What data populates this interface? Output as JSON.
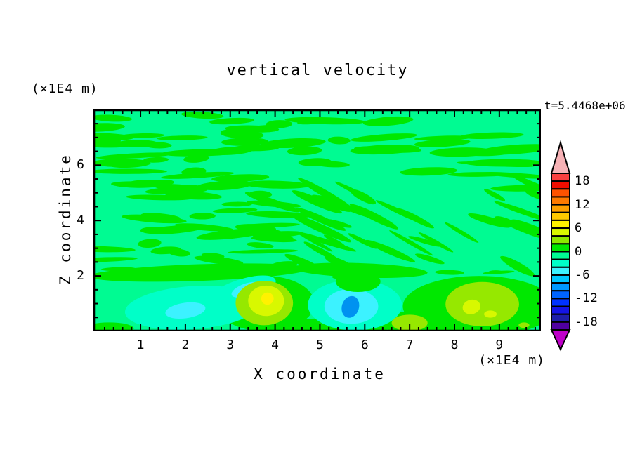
{
  "chart_data": {
    "type": "heatmap",
    "subtype": "filled-contour",
    "title": "vertical velocity",
    "time_label": "t=5.4468e+06",
    "xlabel": "X coordinate",
    "ylabel": "Z coordinate",
    "x_unit": "(×1E4 m)",
    "z_unit": "(×1E4 m)",
    "x_range": [
      0,
      9.9
    ],
    "z_range": [
      0,
      8
    ],
    "x_ticks": [
      "1",
      "2",
      "3",
      "4",
      "5",
      "6",
      "7",
      "8",
      "9"
    ],
    "z_ticks": [
      "2",
      "4",
      "6"
    ],
    "x_minor_step": 0.2,
    "z_minor_step": 0.5,
    "grid": false,
    "legend_position": "right-colorbar",
    "colorbar": {
      "min": -20,
      "max": 20,
      "bin_size": 2,
      "tick_labels": [
        "18",
        "12",
        "6",
        "0",
        "-6",
        "-12",
        "-18"
      ],
      "over_color": "#F7B2B6",
      "under_color": "#BE00C8",
      "colors_top_to_bottom": [
        "#FA4040",
        "#F00D00",
        "#FF5200",
        "#FF7A00",
        "#FFA000",
        "#FFC800",
        "#FFF200",
        "#D8F800",
        "#8CE800",
        "#00E800",
        "#00FB92",
        "#00FFC8",
        "#3CF2FF",
        "#00C8FF",
        "#0098FF",
        "#0064FF",
        "#0032FF",
        "#1414E6",
        "#1E1EAA",
        "#5000A0"
      ]
    },
    "field": {
      "background": {
        "level": "-2..0",
        "color": "#00FB92"
      },
      "texture": {
        "description": "wavy elongated streaks of slightly positive velocity over mint background; horizontal bands upper-left and top, diagonal bands descending to the right in mid-right region",
        "level": "0..2",
        "color": "#00E800",
        "seed": 12,
        "regions": [
          {
            "x": [
              0.05,
              9.85
            ],
            "z": [
              5.05,
              7.9
            ],
            "count": 60,
            "len": [
              0.5,
              1.8
            ],
            "th": [
              0.07,
              0.17
            ],
            "angle": [
              -5,
              5
            ]
          },
          {
            "x": [
              0.05,
              4.3
            ],
            "z": [
              2.3,
              5.05
            ],
            "count": 30,
            "len": [
              0.5,
              1.7
            ],
            "th": [
              0.07,
              0.17
            ],
            "angle": [
              -7,
              7
            ]
          },
          {
            "x": [
              3.6,
              9.85
            ],
            "z": [
              2.35,
              5.3
            ],
            "count": 36,
            "len": [
              0.5,
              1.5
            ],
            "th": [
              0.07,
              0.16
            ],
            "angle": [
              15,
              32
            ]
          },
          {
            "x": [
              0.2,
              9.7
            ],
            "z": [
              1.95,
              2.25
            ],
            "count": 9,
            "len": [
              0.3,
              0.8
            ],
            "th": [
              0.05,
              0.1
            ],
            "angle": [
              -4,
              4
            ]
          }
        ]
      },
      "patches": [
        {
          "name": "z2-green-band-left",
          "x": 2.3,
          "z": 2.12,
          "rx": 2.45,
          "ry": 0.3,
          "rot": -2,
          "color": "#00E800",
          "level": "0..2"
        },
        {
          "name": "z2-green-band-mid",
          "x": 5.9,
          "z": 2.2,
          "rx": 1.5,
          "ry": 0.26,
          "rot": 2,
          "color": "#00E800",
          "level": "0..2"
        },
        {
          "name": "bottom-left-corner-green",
          "x": 0.3,
          "z": 0.1,
          "rx": 0.55,
          "ry": 0.22,
          "rot": 0,
          "color": "#00E800",
          "level": "0..2"
        },
        {
          "name": "updraft-left-green-surround",
          "x": 3.78,
          "z": 1.0,
          "rx": 1.1,
          "ry": 1.0,
          "rot": 0,
          "color": "#00E800",
          "level": "0..2"
        },
        {
          "name": "bottom-strip-green",
          "x": 5.2,
          "z": 0.15,
          "rx": 1.35,
          "ry": 0.32,
          "rot": 0,
          "color": "#00E800",
          "level": "0..2"
        },
        {
          "name": "right-green-region",
          "x": 8.55,
          "z": 0.9,
          "rx": 1.7,
          "ry": 1.1,
          "rot": 0,
          "color": "#00E800",
          "level": "0..2"
        },
        {
          "name": "small-green-surround",
          "x": 7.0,
          "z": 0.3,
          "rx": 0.6,
          "ry": 0.42,
          "rot": 0,
          "color": "#00E800",
          "level": "0..2"
        },
        {
          "name": "left-downdraft-outer",
          "x": 2.15,
          "z": 0.85,
          "rx": 1.5,
          "ry": 0.78,
          "rot": -4,
          "color": "#00FFC8",
          "level": "-4..-2"
        },
        {
          "name": "left-downdraft-arm",
          "x": 3.25,
          "z": 1.45,
          "rx": 0.8,
          "ry": 0.42,
          "rot": -18,
          "color": "#00FFC8",
          "level": "-4..-2"
        },
        {
          "name": "left-downdraft-core",
          "x": 2.0,
          "z": 0.75,
          "rx": 0.45,
          "ry": 0.28,
          "rot": -8,
          "color": "#3CF2FF",
          "level": "-6..-4"
        },
        {
          "name": "left-downdraft-core2",
          "x": 3.35,
          "z": 1.5,
          "rx": 0.34,
          "ry": 0.22,
          "rot": -20,
          "color": "#3CF2FF",
          "level": "-6..-4"
        },
        {
          "name": "mid-downdraft-outer",
          "x": 5.78,
          "z": 0.95,
          "rx": 1.05,
          "ry": 0.92,
          "rot": 0,
          "color": "#00FFC8",
          "level": "-4..-2"
        },
        {
          "name": "mid-downdraft-cyan",
          "x": 5.7,
          "z": 0.9,
          "rx": 0.6,
          "ry": 0.63,
          "rot": 0,
          "color": "#3CF2FF",
          "level": "-6..-4"
        },
        {
          "name": "mid-downdraft-blue-core",
          "x": 5.68,
          "z": 0.88,
          "rx": 0.19,
          "ry": 0.4,
          "rot": 18,
          "color": "#0092F0",
          "level": "-10..-8"
        },
        {
          "name": "green-island-above-blue",
          "x": 5.85,
          "z": 1.8,
          "rx": 0.5,
          "ry": 0.38,
          "rot": 0,
          "color": "#00E800",
          "level": "0..2"
        },
        {
          "name": "updraft-left-yellowgreen",
          "x": 3.76,
          "z": 1.02,
          "rx": 0.64,
          "ry": 0.8,
          "rot": 0,
          "color": "#96E800",
          "level": "2..4"
        },
        {
          "name": "updraft-left-chartreuse",
          "x": 3.8,
          "z": 1.1,
          "rx": 0.4,
          "ry": 0.55,
          "rot": 0,
          "color": "#D8F800",
          "level": "4..6"
        },
        {
          "name": "updraft-left-yellow-core",
          "x": 3.83,
          "z": 1.18,
          "rx": 0.14,
          "ry": 0.22,
          "rot": -20,
          "color": "#FFF200",
          "level": "6..8"
        },
        {
          "name": "small-updraft",
          "x": 7.0,
          "z": 0.3,
          "rx": 0.4,
          "ry": 0.3,
          "rot": 0,
          "color": "#96E800",
          "level": "2..4"
        },
        {
          "name": "right-updraft-yellowgreen",
          "x": 8.62,
          "z": 0.98,
          "rx": 0.82,
          "ry": 0.8,
          "rot": 0,
          "color": "#96E800",
          "level": "2..4"
        },
        {
          "name": "right-updraft-chartreuse",
          "x": 8.38,
          "z": 0.88,
          "rx": 0.2,
          "ry": 0.26,
          "rot": -15,
          "color": "#D8F800",
          "level": "4..6"
        },
        {
          "name": "right-updraft-chartreuse2",
          "x": 8.8,
          "z": 0.62,
          "rx": 0.14,
          "ry": 0.13,
          "rot": 0,
          "color": "#D8F800",
          "level": "4..6"
        },
        {
          "name": "tiny-updraft-dot",
          "x": 9.55,
          "z": 0.22,
          "rx": 0.12,
          "ry": 0.1,
          "rot": 0,
          "color": "#96E800",
          "level": "2..4"
        }
      ]
    }
  }
}
